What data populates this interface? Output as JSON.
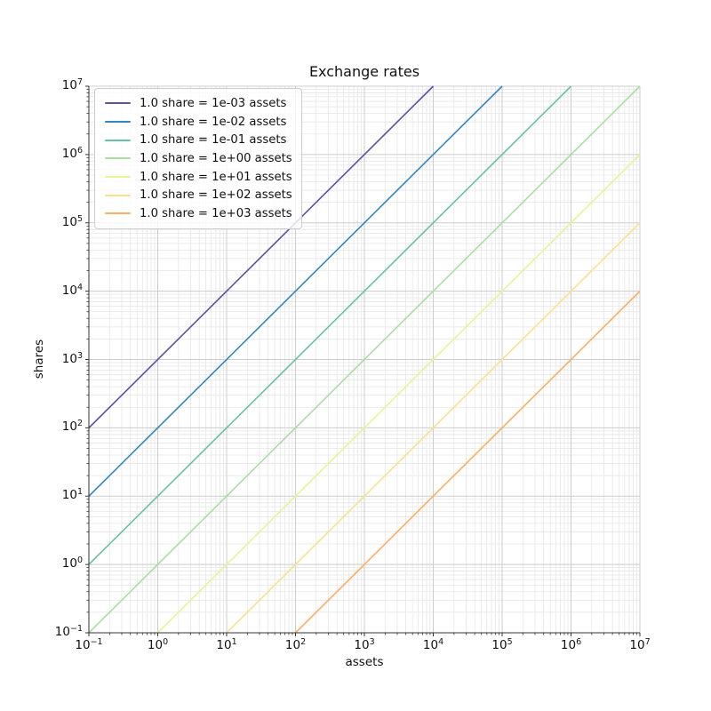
{
  "chart_data": {
    "type": "line",
    "title": "Exchange rates",
    "xlabel": "assets",
    "ylabel": "shares",
    "xscale": "log",
    "yscale": "log",
    "xlim": [
      0.1,
      10000000
    ],
    "ylim": [
      0.1,
      10000000
    ],
    "grid": true,
    "grid_minor": true,
    "legend_position": "upper left",
    "tick_label_base": "10",
    "x_tick_exponents": [
      -1,
      0,
      1,
      2,
      3,
      4,
      5,
      6,
      7
    ],
    "y_tick_exponents": [
      -1,
      0,
      1,
      2,
      3,
      4,
      5,
      6,
      7
    ],
    "series": [
      {
        "name": "1.0 share = 1e-03 assets",
        "rate_assets_per_share": 0.001,
        "color": "#5e4fa2",
        "points": [
          [
            0.1,
            100
          ],
          [
            10000,
            10000000
          ]
        ]
      },
      {
        "name": "1.0 share = 1e-02 assets",
        "rate_assets_per_share": 0.01,
        "color": "#3288bd",
        "points": [
          [
            0.1,
            10
          ],
          [
            100000,
            10000000
          ]
        ]
      },
      {
        "name": "1.0 share = 1e-01 assets",
        "rate_assets_per_share": 0.1,
        "color": "#66c2a5",
        "points": [
          [
            0.1,
            1
          ],
          [
            1000000,
            10000000
          ]
        ]
      },
      {
        "name": "1.0 share = 1e+00 assets",
        "rate_assets_per_share": 1.0,
        "color": "#abdda4",
        "points": [
          [
            0.1,
            0.1
          ],
          [
            10000000,
            10000000
          ]
        ]
      },
      {
        "name": "1.0 share = 1e+01 assets",
        "rate_assets_per_share": 10.0,
        "color": "#e6f598",
        "points": [
          [
            1,
            0.1
          ],
          [
            10000000,
            1000000
          ]
        ]
      },
      {
        "name": "1.0 share = 1e+02 assets",
        "rate_assets_per_share": 100.0,
        "color": "#fee08b",
        "points": [
          [
            10,
            0.1
          ],
          [
            10000000,
            100000
          ]
        ]
      },
      {
        "name": "1.0 share = 1e+03 assets",
        "rate_assets_per_share": 1000.0,
        "color": "#fdae61",
        "points": [
          [
            100,
            0.1
          ],
          [
            10000000,
            10000
          ]
        ]
      }
    ],
    "style": {
      "axis_color": "#333333",
      "grid_major_color": "#cccccc",
      "grid_minor_color": "#e6e6e6",
      "background_color": "#ffffff",
      "line_width": 1.6
    }
  }
}
